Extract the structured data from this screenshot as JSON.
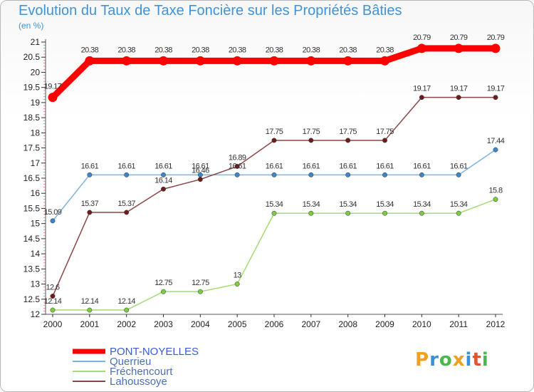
{
  "title": "Evolution du Taux de Taxe Foncière sur les Propriétés Bâties",
  "unit_label": "(en %)",
  "brand": {
    "letters": [
      "P",
      "r",
      "o",
      "x",
      "i",
      "t",
      "i"
    ],
    "colors": [
      "#f0a01e",
      "#3a8fd8",
      "#49b84a",
      "#f0a01e",
      "#3a8fd8",
      "#e8512e",
      "#49b84a"
    ]
  },
  "chart_data": {
    "type": "line",
    "x": [
      2000,
      2001,
      2002,
      2003,
      2004,
      2005,
      2006,
      2007,
      2008,
      2009,
      2010,
      2011,
      2012
    ],
    "ylim": [
      12,
      21
    ],
    "y_ticks": [
      "12",
      "12.5",
      "13",
      "13.5",
      "14",
      "14.5",
      "15",
      "15.5",
      "16",
      "16.5",
      "17",
      "17.5",
      "18",
      "18.5",
      "19",
      "19.5",
      "20",
      "20.5",
      "21"
    ],
    "grid": false,
    "legend_position": "bottom-left",
    "series": [
      {
        "name": "PONT-NOYELLES",
        "color": "#ff0000",
        "marker": "#ff0000",
        "width": 9,
        "values": [
          19.17,
          20.38,
          20.38,
          20.38,
          20.38,
          20.38,
          20.38,
          20.38,
          20.38,
          20.38,
          20.79,
          20.79,
          20.79
        ],
        "labels": [
          "19.17",
          "20.38",
          "20.38",
          "20.38",
          "20.38",
          "20.38",
          "20.38",
          "20.38",
          "20.38",
          "20.38",
          "20.79",
          "20.79",
          "20.79"
        ]
      },
      {
        "name": "Querrieu",
        "color": "#7eb3dd",
        "marker": "#3d86c8",
        "width": 1.5,
        "values": [
          15.09,
          16.61,
          16.61,
          16.61,
          16.61,
          16.61,
          16.61,
          16.61,
          16.61,
          16.61,
          16.61,
          16.61,
          17.44
        ],
        "labels": [
          "15.09",
          "16.61",
          "16.61",
          "16.61",
          "16.61",
          "16.61",
          "16.61",
          "16.61",
          "16.61",
          "16.61",
          "16.61",
          "16.61",
          "17.44"
        ]
      },
      {
        "name": "Fréchencourt",
        "color": "#a4db72",
        "marker": "#7ccd3c",
        "width": 1.5,
        "values": [
          12.14,
          12.14,
          12.14,
          12.75,
          12.75,
          13,
          15.34,
          15.34,
          15.34,
          15.34,
          15.34,
          15.34,
          15.8
        ],
        "labels": [
          "12.14",
          "12.14",
          "12.14",
          "12.75",
          "12.75",
          "13",
          "15.34",
          "15.34",
          "15.34",
          "15.34",
          "15.34",
          "15.34",
          "15.8"
        ]
      },
      {
        "name": "Lahoussoye",
        "color": "#8a4545",
        "marker": "#6e1c1c",
        "width": 1.5,
        "values": [
          12.6,
          15.37,
          15.37,
          16.14,
          16.46,
          16.89,
          17.75,
          17.75,
          17.75,
          17.75,
          19.17,
          19.17,
          19.17
        ],
        "labels": [
          "12.6",
          "15.37",
          "15.37",
          "16.14",
          "16.46",
          "16.89",
          "17.75",
          "17.75",
          "17.75",
          "17.75",
          "19.17",
          "19.17",
          "19.17"
        ]
      }
    ]
  }
}
